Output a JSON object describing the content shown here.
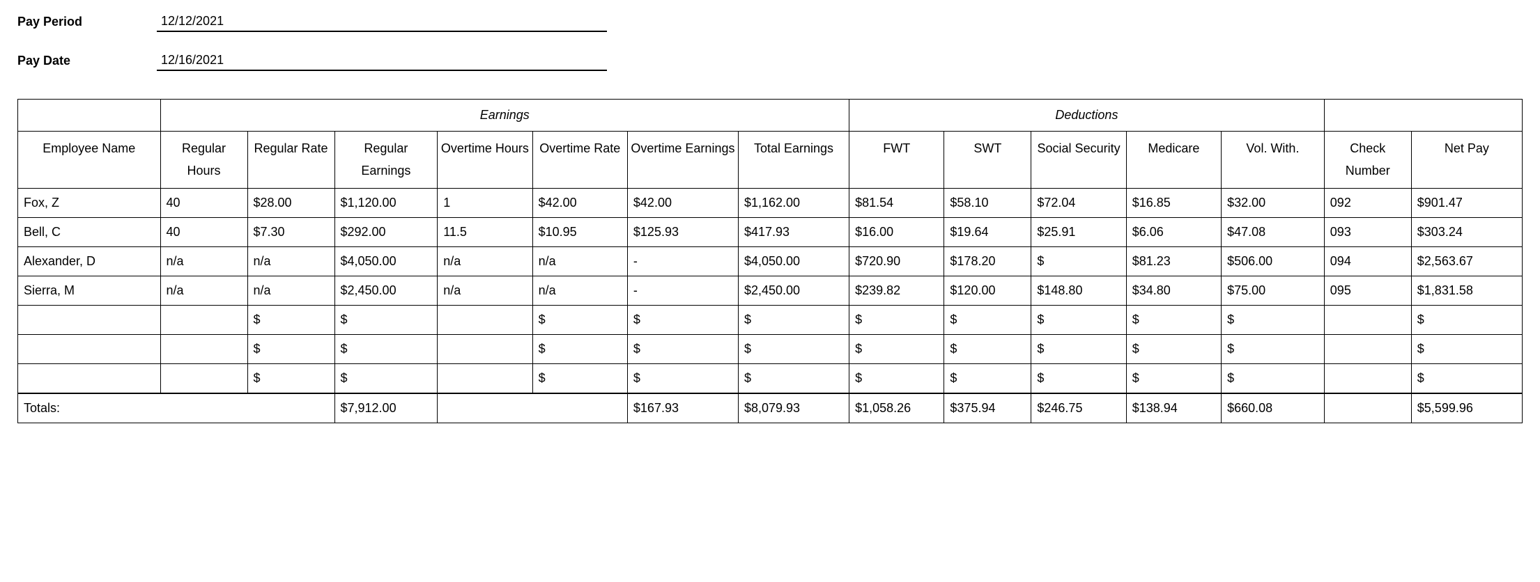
{
  "form": {
    "pay_period_label": "Pay Period",
    "pay_period_value": "12/12/2021",
    "pay_date_label": "Pay Date",
    "pay_date_value": "12/16/2021"
  },
  "table": {
    "group_headers": {
      "earnings": "Earnings",
      "deductions": "Deductions"
    },
    "columns": {
      "name": "Employee Name",
      "reg_hours": "Regular Hours",
      "reg_rate": "Regular Rate",
      "reg_earn": "Regular Earnings",
      "ot_hours": "Overtime Hours",
      "ot_rate": "Overtime Rate",
      "ot_earn": "Overtime Earnings",
      "tot_earn": "Total Earnings",
      "fwt": "FWT",
      "swt": "SWT",
      "ss": "Social Security",
      "medicare": "Medicare",
      "vol": "Vol. With.",
      "check": "Check Number",
      "net": "Net Pay"
    },
    "rows": [
      {
        "name": "Fox, Z",
        "reg_hours": "40",
        "reg_rate": "$28.00",
        "reg_earn": "$1,120.00",
        "ot_hours": "1",
        "ot_rate": "$42.00",
        "ot_earn": "$42.00",
        "tot_earn": "$1,162.00",
        "fwt": "$81.54",
        "swt": "$58.10",
        "ss": "$72.04",
        "medicare": "$16.85",
        "vol": "$32.00",
        "check": "092",
        "net": "$901.47"
      },
      {
        "name": "Bell, C",
        "reg_hours": "40",
        "reg_rate": "$7.30",
        "reg_earn": "$292.00",
        "ot_hours": "11.5",
        "ot_rate": "$10.95",
        "ot_earn": "$125.93",
        "tot_earn": "$417.93",
        "fwt": "$16.00",
        "swt": "$19.64",
        "ss": "$25.91",
        "medicare": "$6.06",
        "vol": "$47.08",
        "check": "093",
        "net": "$303.24"
      },
      {
        "name": "Alexander, D",
        "reg_hours": "n/a",
        "reg_rate": "n/a",
        "reg_earn": "$4,050.00",
        "ot_hours": "n/a",
        "ot_rate": "n/a",
        "ot_earn": "-",
        "tot_earn": "$4,050.00",
        "fwt": "$720.90",
        "swt": "$178.20",
        "ss": "$",
        "medicare": "$81.23",
        "vol": "$506.00",
        "check": "094",
        "net": "$2,563.67"
      },
      {
        "name": "Sierra, M",
        "reg_hours": "n/a",
        "reg_rate": "n/a",
        "reg_earn": "$2,450.00",
        "ot_hours": "n/a",
        "ot_rate": "n/a",
        "ot_earn": "-",
        "tot_earn": "$2,450.00",
        "fwt": "$239.82",
        "swt": "$120.00",
        "ss": "$148.80",
        "medicare": "$34.80",
        "vol": "$75.00",
        "check": "095",
        "net": "$1,831.58"
      },
      {
        "name": "",
        "reg_hours": "",
        "reg_rate": "$",
        "reg_earn": "$",
        "ot_hours": "",
        "ot_rate": "$",
        "ot_earn": "$",
        "tot_earn": "$",
        "fwt": "$",
        "swt": "$",
        "ss": "$",
        "medicare": "$",
        "vol": "$",
        "check": "",
        "net": "$"
      },
      {
        "name": "",
        "reg_hours": "",
        "reg_rate": "$",
        "reg_earn": "$",
        "ot_hours": "",
        "ot_rate": "$",
        "ot_earn": "$",
        "tot_earn": "$",
        "fwt": "$",
        "swt": "$",
        "ss": "$",
        "medicare": "$",
        "vol": "$",
        "check": "",
        "net": "$"
      },
      {
        "name": "",
        "reg_hours": "",
        "reg_rate": "$",
        "reg_earn": "$",
        "ot_hours": "",
        "ot_rate": "$",
        "ot_earn": "$",
        "tot_earn": "$",
        "fwt": "$",
        "swt": "$",
        "ss": "$",
        "medicare": "$",
        "vol": "$",
        "check": "",
        "net": "$"
      }
    ],
    "totals": {
      "label": "Totals:",
      "reg_earn": "$7,912.00",
      "ot_earn": "$167.93",
      "tot_earn": "$8,079.93",
      "fwt": "$1,058.26",
      "swt": "$375.94",
      "ss": "$246.75",
      "medicare": "$138.94",
      "vol": "$660.08",
      "net": "$5,599.96"
    }
  }
}
